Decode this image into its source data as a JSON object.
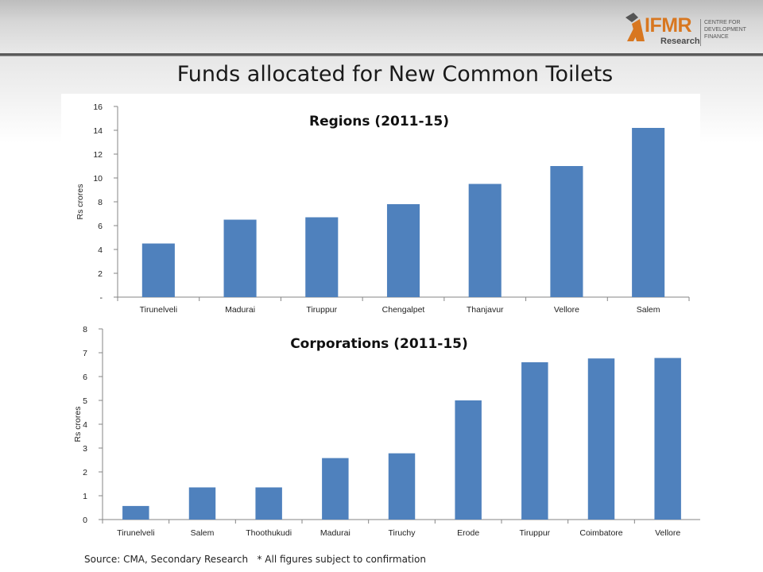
{
  "slide": {
    "title": "Funds allocated for New Common Toilets",
    "source_note": "Source: CMA, Secondary Research   * All figures subject to confirmation"
  },
  "logo": {
    "brand": "IFMR",
    "sub": "Research",
    "tagline": [
      "CENTRE FOR",
      "DEVELOPMENT",
      "FINANCE"
    ],
    "colors": {
      "brand": "#d87720",
      "sub": "#4a4a4a"
    }
  },
  "colors": {
    "bar": "#4f81bd",
    "axis": "#868686"
  },
  "chart_data": [
    {
      "type": "bar",
      "title": "Regions (2011-15)",
      "ylabel": "Rs crores",
      "xlabel": "",
      "categories": [
        "Tirunelveli",
        "Madurai",
        "Tiruppur",
        "Chengalpet",
        "Thanjavur",
        "Vellore",
        "Salem"
      ],
      "values": [
        4.5,
        6.5,
        6.7,
        7.8,
        9.5,
        11.0,
        14.2
      ],
      "ylim": [
        0,
        16
      ],
      "yticks": [
        0,
        2,
        4,
        6,
        8,
        10,
        12,
        14,
        16
      ],
      "ytick_labels": [
        "-",
        "2",
        "4",
        "6",
        "8",
        "10",
        "12",
        "14",
        "16"
      ],
      "grid": false,
      "legend": "none"
    },
    {
      "type": "bar",
      "title": "Corporations (2011-15)",
      "ylabel": "Rs crores",
      "xlabel": "",
      "categories": [
        "Tirunelveli",
        "Salem",
        "Thoothukudi",
        "Madurai",
        "Tiruchy",
        "Erode",
        "Tiruppur",
        "Coimbatore",
        "Vellore"
      ],
      "values": [
        0.57,
        1.35,
        1.35,
        2.58,
        2.78,
        5.0,
        6.6,
        6.76,
        6.78
      ],
      "ylim": [
        0,
        8
      ],
      "yticks": [
        0,
        1,
        2,
        3,
        4,
        5,
        6,
        7,
        8
      ],
      "ytick_labels": [
        "0",
        "1",
        "2",
        "3",
        "4",
        "5",
        "6",
        "7",
        "8"
      ],
      "grid": false,
      "legend": "none"
    }
  ]
}
